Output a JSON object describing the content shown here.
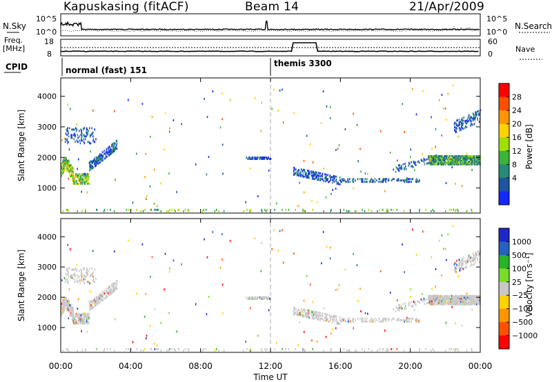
{
  "header": {
    "station": "Kapuskasing (fitACF)",
    "beam": "Beam 14",
    "date": "21/Apr/2009"
  },
  "summary": {
    "nsky_label": "N.Sky",
    "nsky_ticks": [
      "10^5",
      "10^0"
    ],
    "nsearch_label": "N.Search",
    "nsearch_ticks": [
      "10^5",
      "10^0"
    ],
    "freq_label": "Freq.",
    "freq_unit": "[MHz]",
    "freq_ticks": [
      "18",
      "8"
    ],
    "nave_label": "Nave",
    "nave_ticks": [
      "60",
      "0"
    ],
    "cpid_label": "CPID",
    "cpid_segments": [
      {
        "text": "normal (fast) 151",
        "start_hour": 0,
        "end_hour": 12
      },
      {
        "text": "themis 3300",
        "start_hour": 12,
        "end_hour": 24
      }
    ]
  },
  "chart_data": [
    {
      "type": "heatmap",
      "name": "power",
      "xlabel": "Time UT",
      "ylabel": "Slant Range [km]",
      "x_range_hours": [
        0,
        24
      ],
      "ylim": [
        180,
        4600
      ],
      "yticks": [
        "1000",
        "2000",
        "3000",
        "4000"
      ],
      "colorbar": {
        "title": "Power [dB]",
        "ticks": [
          "28",
          "24",
          "20",
          "16",
          "12",
          "8",
          "4"
        ],
        "colors": [
          "#ff0000",
          "#ff5000",
          "#ff9500",
          "#ffd200",
          "#a0e000",
          "#3cb43c",
          "#288a78",
          "#1e55a0",
          "#1428ff"
        ]
      }
    },
    {
      "type": "heatmap",
      "name": "velocity",
      "xlabel": "Time UT",
      "ylabel": "Slant Range [km]",
      "x_range_hours": [
        0,
        24
      ],
      "ylim": [
        180,
        4600
      ],
      "yticks": [
        "1000",
        "2000",
        "3000",
        "4000"
      ],
      "xticks": [
        "00:00",
        "04:00",
        "08:00",
        "12:00",
        "16:00",
        "20:00",
        "00:00"
      ],
      "colorbar": {
        "title": "Velocity [m s⁻¹]",
        "ticks": [
          "1000",
          "500",
          "100",
          "25",
          "−25",
          "−100",
          "−500",
          "−1000"
        ],
        "colors": [
          "#1e28c8",
          "#2860c0",
          "#28b428",
          "#78dc28",
          "#c8c8c8",
          "#ffd200",
          "#ff9600",
          "#ff5000",
          "#ff0000"
        ]
      }
    }
  ]
}
